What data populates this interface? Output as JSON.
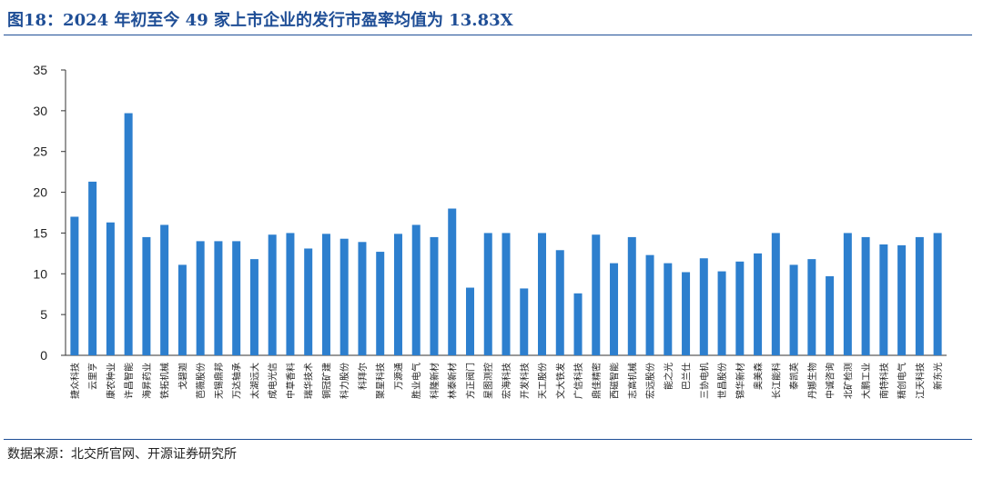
{
  "header": {
    "title": "图18：2024 年初至今 49 家上市企业的发行市盈率均值为 13.83X"
  },
  "footer": {
    "source": "数据来源：北交所官网、开源证券研究所"
  },
  "colors": {
    "bar": "#2d7fce",
    "title": "#1f4e96",
    "axis": "#333333"
  },
  "chart_data": {
    "type": "bar",
    "title": "",
    "xlabel": "",
    "ylabel": "",
    "ylim": [
      0,
      35
    ],
    "yticks": [
      0,
      5,
      10,
      15,
      20,
      25,
      30,
      35
    ],
    "grid": false,
    "categories": [
      "捷众科技",
      "云里亨",
      "康农种业",
      "许昌智能",
      "海昇药业",
      "铁拓机械",
      "戈碧迦",
      "芭薇股份",
      "无锡鼎邦",
      "万达轴承",
      "太湖远大",
      "成电光信",
      "中草香料",
      "瑞华技术",
      "铜冠矿建",
      "科力股份",
      "科拜尔",
      "聚星科技",
      "万源通",
      "胜业电气",
      "科隆新材",
      "林泰新材",
      "方正阀门",
      "星图测控",
      "宏海科技",
      "开发科技",
      "天工股份",
      "文大铁发",
      "广信科技",
      "鼎佳精密",
      "西磁智能",
      "志高机械",
      "宏远股份",
      "能之光",
      "巴兰仕",
      "三协电机",
      "世昌股份",
      "锦华新材",
      "奥美森",
      "长江能科",
      "泰凯英",
      "丹娜生物",
      "中诚咨询",
      "北矿检测",
      "大鹏工业",
      "南特科技",
      "精创电气",
      "江天科技",
      "新东光"
    ],
    "values": [
      17.0,
      21.3,
      16.3,
      29.7,
      14.5,
      16.0,
      11.1,
      14.0,
      14.0,
      14.0,
      11.8,
      14.8,
      15.0,
      13.1,
      14.9,
      14.3,
      13.9,
      12.7,
      14.9,
      16.0,
      14.5,
      18.0,
      8.3,
      15.0,
      15.0,
      8.2,
      15.0,
      12.9,
      7.6,
      14.8,
      11.3,
      14.5,
      12.3,
      11.3,
      10.2,
      11.9,
      10.3,
      11.5,
      12.5,
      15.0,
      11.1,
      11.8,
      9.7,
      15.0,
      14.5,
      13.6,
      13.5,
      14.5,
      15.0
    ]
  }
}
